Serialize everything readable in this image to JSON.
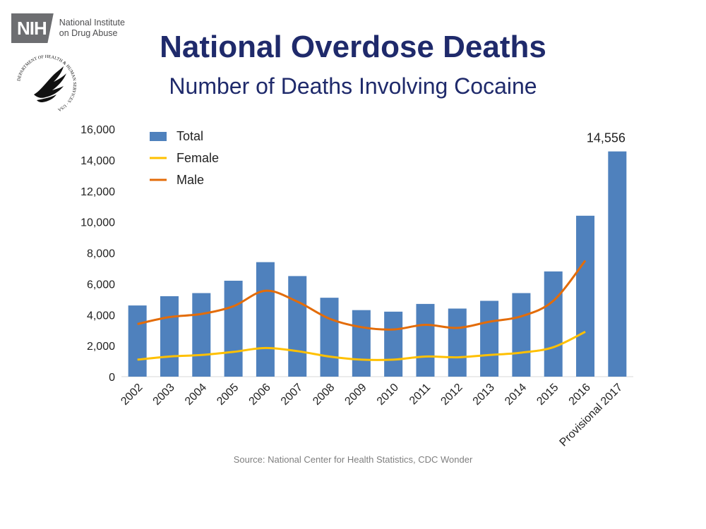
{
  "header": {
    "nih_abbrev": "NIH",
    "nih_line1": "National Institute",
    "nih_line2": "on Drug Abuse",
    "seal_text": "DEPARTMENT OF HEALTH & HUMAN SERVICES · USA"
  },
  "title": "National Overdose Deaths",
  "subtitle": "Number of Deaths Involving Cocaine",
  "source": "Source: National Center for Health Statistics, CDC Wonder",
  "colors": {
    "total": "#4f81bd",
    "female": "#ffc000",
    "male": "#e36c09",
    "title": "#1f2a6b"
  },
  "chart_data": {
    "type": "bar",
    "categories": [
      "2002",
      "2003",
      "2004",
      "2005",
      "2006",
      "2007",
      "2008",
      "2009",
      "2010",
      "2011",
      "2012",
      "2013",
      "2014",
      "2015",
      "2016",
      "Provisional 2017"
    ],
    "series": [
      {
        "name": "Total",
        "type": "bar",
        "values": [
          4600,
          5200,
          5400,
          6200,
          7400,
          6500,
          5100,
          4300,
          4200,
          4700,
          4400,
          4900,
          5400,
          6800,
          10400,
          14556
        ]
      },
      {
        "name": "Female",
        "type": "line",
        "values": [
          1100,
          1300,
          1400,
          1600,
          1850,
          1650,
          1300,
          1100,
          1100,
          1300,
          1250,
          1400,
          1550,
          1900,
          2900,
          null
        ]
      },
      {
        "name": "Male",
        "type": "line",
        "values": [
          3400,
          3850,
          4050,
          4550,
          5550,
          4850,
          3750,
          3200,
          3050,
          3350,
          3150,
          3550,
          3900,
          4900,
          7500,
          null
        ]
      }
    ],
    "yticks": [
      "0",
      "2,000",
      "4,000",
      "6,000",
      "8,000",
      "10,000",
      "12,000",
      "14,000",
      "16,000"
    ],
    "ylim": [
      0,
      16000
    ],
    "data_labels": [
      {
        "category": "Provisional 2017",
        "text": "14,556"
      }
    ],
    "legend": {
      "placement": "top-left",
      "entries": [
        "Total",
        "Female",
        "Male"
      ]
    },
    "grid": false
  }
}
